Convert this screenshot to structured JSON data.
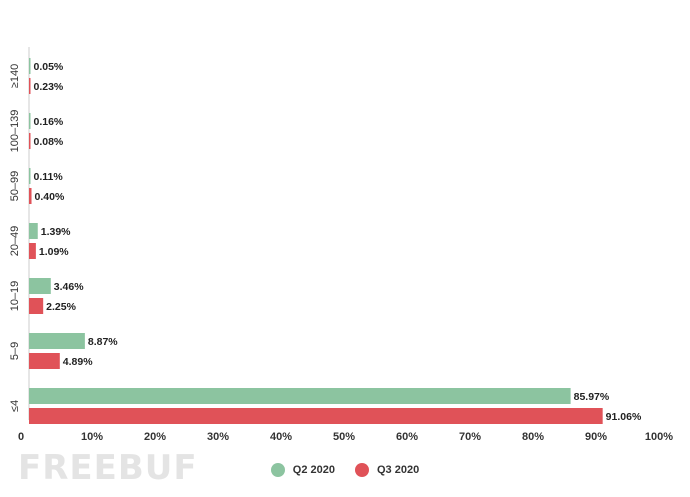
{
  "chart_data": {
    "type": "bar",
    "orientation": "horizontal",
    "categories": [
      "≥140",
      "100–139",
      "50–99",
      "20–49",
      "10–19",
      "5–9",
      "≤4"
    ],
    "series": [
      {
        "name": "Q2 2020",
        "color": "#8cc4a0",
        "values": [
          0.05,
          0.16,
          0.11,
          1.39,
          3.46,
          8.87,
          85.97
        ],
        "labels": [
          "0.05%",
          "0.16%",
          "0.11%",
          "1.39%",
          "3.46%",
          "8.87%",
          "85.97%"
        ]
      },
      {
        "name": "Q3 2020",
        "color": "#e05258",
        "values": [
          0.23,
          0.08,
          0.4,
          1.09,
          2.25,
          4.89,
          91.06
        ],
        "labels": [
          "0.23%",
          "0.08%",
          "0.40%",
          "1.09%",
          "2.25%",
          "4.89%",
          "91.06%"
        ]
      }
    ],
    "xlim": [
      0,
      100
    ],
    "xticks": [
      "0",
      "10%",
      "20%",
      "30%",
      "40%",
      "50%",
      "60%",
      "70%",
      "80%",
      "90%",
      "100%"
    ],
    "grid": false,
    "legend_position": "bottom-center"
  },
  "watermark": "FREEBUF"
}
